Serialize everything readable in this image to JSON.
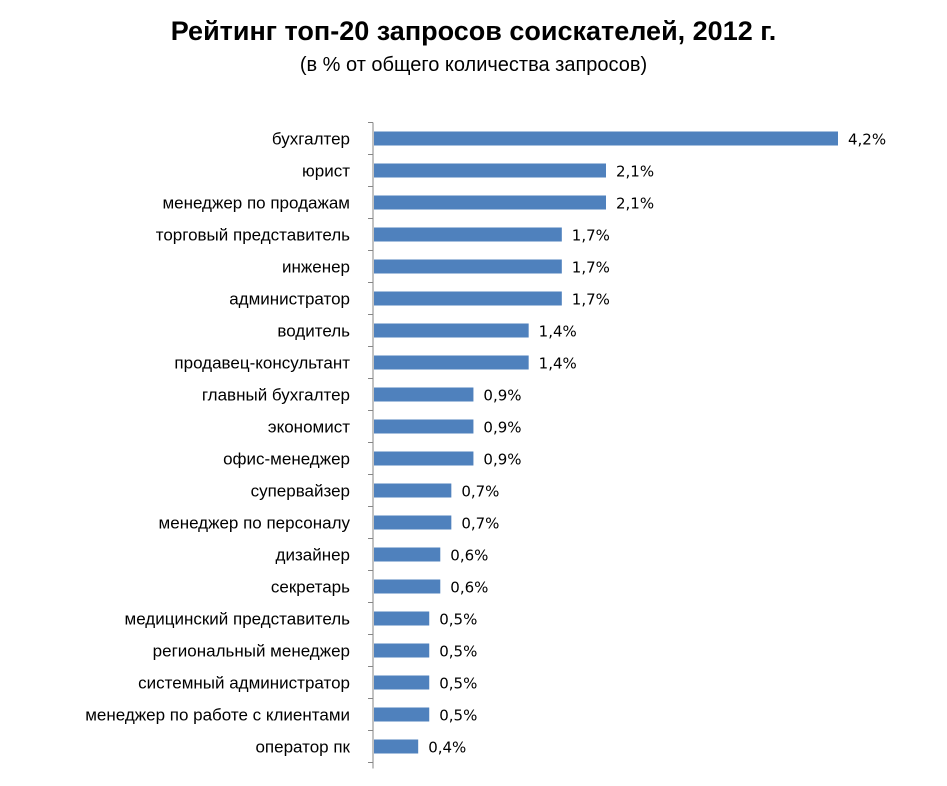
{
  "title": "Рейтинг топ-20 запросов соискателей, 2012 г.",
  "subtitle": "(в % от общего количества запросов)",
  "colors": {
    "bar": "#4F81BD",
    "axis": "#868686",
    "text": "#000000"
  },
  "chart_data": {
    "type": "bar",
    "orientation": "horizontal",
    "title": "Рейтинг топ-20 запросов соискателей, 2012 г.",
    "subtitle": "(в % от общего количества запросов)",
    "xlabel": "",
    "ylabel": "",
    "grid": false,
    "legend": "none",
    "categories": [
      "бухгалтер",
      "юрист",
      "менеджер по продажам",
      "торговый представитель",
      "инженер",
      "администратор",
      "водитель",
      "продавец-консультант",
      "главный бухгалтер",
      "экономист",
      "офис-менеджер",
      "супервайзер",
      "менеджер по персоналу",
      "дизайнер",
      "секретарь",
      "медицинский  представитель",
      "региональный менеджер",
      "системный администратор",
      "менеджер по работе с клиентами",
      "оператор пк"
    ],
    "values": [
      4.2,
      2.1,
      2.1,
      1.7,
      1.7,
      1.7,
      1.4,
      1.4,
      0.9,
      0.9,
      0.9,
      0.7,
      0.7,
      0.6,
      0.6,
      0.5,
      0.5,
      0.5,
      0.5,
      0.4
    ],
    "data_labels": [
      "4,2%",
      "2,1%",
      "2,1%",
      "1,7%",
      "1,7%",
      "1,7%",
      "1,4%",
      "1,4%",
      "0,9%",
      "0,9%",
      "0,9%",
      "0,7%",
      "0,7%",
      "0,6%",
      "0,6%",
      "0,5%",
      "0,5%",
      "0,5%",
      "0,5%",
      "0,4%"
    ],
    "xlim": [
      0,
      4.2
    ]
  }
}
